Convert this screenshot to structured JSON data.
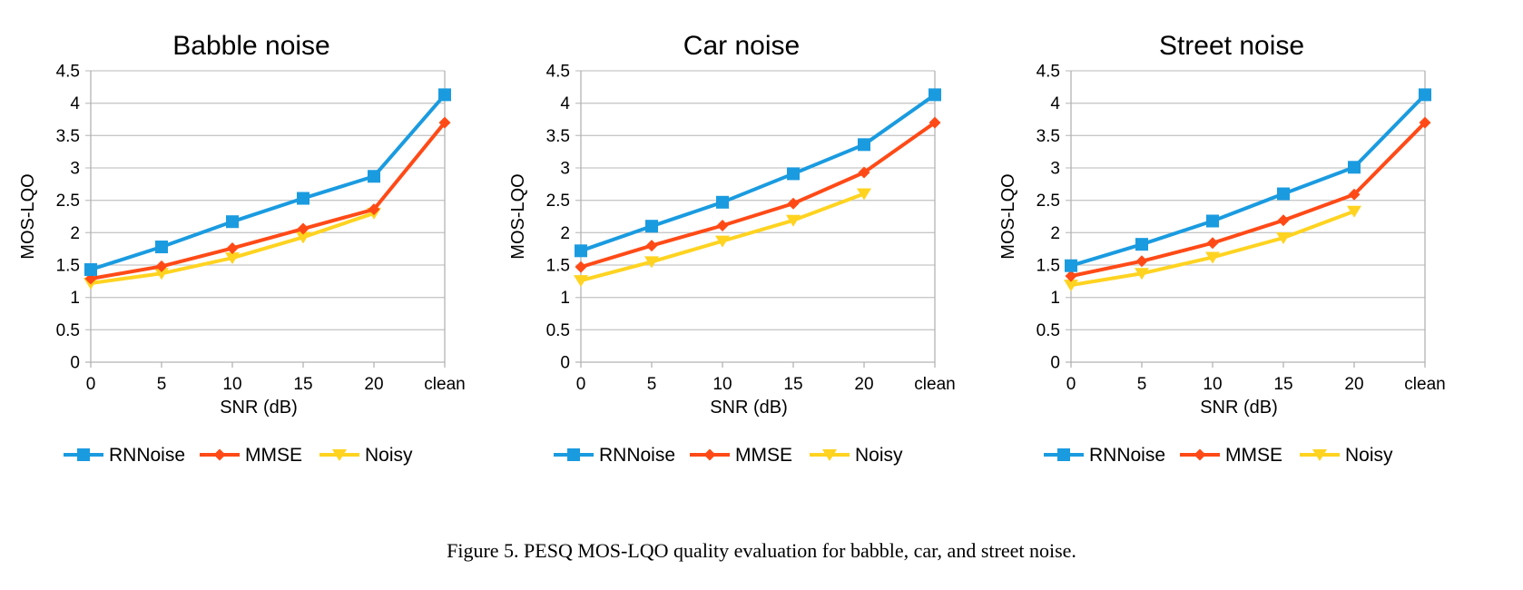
{
  "colors": {
    "RNNoise": "#1a9be0",
    "MMSE": "#ff4a17",
    "Noisy": "#ffd320",
    "grid": "#c8c8c8",
    "axis": "#b3b3b3"
  },
  "chart_data": [
    {
      "type": "line",
      "title": "Babble noise",
      "xlabel": "SNR (dB)",
      "ylabel": "MOS-LQO",
      "categories": [
        "0",
        "5",
        "10",
        "15",
        "20",
        "clean"
      ],
      "yticks": [
        "0",
        "0.5",
        "1",
        "1.5",
        "2",
        "2.5",
        "3",
        "3.5",
        "4",
        "4.5"
      ],
      "ylim": [
        0,
        4.5
      ],
      "grid": true,
      "legend_position": "bottom",
      "series": [
        {
          "name": "RNNoise",
          "marker": "square",
          "values": [
            1.43,
            1.78,
            2.17,
            2.53,
            2.87,
            4.13
          ]
        },
        {
          "name": "MMSE",
          "marker": "diamond",
          "values": [
            1.29,
            1.48,
            1.76,
            2.06,
            2.36,
            3.7
          ]
        },
        {
          "name": "Noisy",
          "marker": "triangle-down",
          "values": [
            1.22,
            1.37,
            1.61,
            1.93,
            2.3,
            null
          ]
        }
      ]
    },
    {
      "type": "line",
      "title": "Car noise",
      "xlabel": "SNR (dB)",
      "ylabel": "MOS-LQO",
      "categories": [
        "0",
        "5",
        "10",
        "15",
        "20",
        "clean"
      ],
      "yticks": [
        "0",
        "0.5",
        "1",
        "1.5",
        "2",
        "2.5",
        "3",
        "3.5",
        "4",
        "4.5"
      ],
      "ylim": [
        0,
        4.5
      ],
      "grid": true,
      "legend_position": "bottom",
      "series": [
        {
          "name": "RNNoise",
          "marker": "square",
          "values": [
            1.72,
            2.1,
            2.47,
            2.91,
            3.36,
            4.13
          ]
        },
        {
          "name": "MMSE",
          "marker": "diamond",
          "values": [
            1.47,
            1.8,
            2.11,
            2.45,
            2.93,
            3.7
          ]
        },
        {
          "name": "Noisy",
          "marker": "triangle-down",
          "values": [
            1.26,
            1.55,
            1.87,
            2.19,
            2.6,
            null
          ]
        }
      ]
    },
    {
      "type": "line",
      "title": "Street noise",
      "xlabel": "SNR (dB)",
      "ylabel": "MOS-LQO",
      "categories": [
        "0",
        "5",
        "10",
        "15",
        "20",
        "clean"
      ],
      "yticks": [
        "0",
        "0.5",
        "1",
        "1.5",
        "2",
        "2.5",
        "3",
        "3.5",
        "4",
        "4.5"
      ],
      "ylim": [
        0,
        4.5
      ],
      "grid": true,
      "legend_position": "bottom",
      "series": [
        {
          "name": "RNNoise",
          "marker": "square",
          "values": [
            1.49,
            1.82,
            2.18,
            2.6,
            3.01,
            4.13
          ]
        },
        {
          "name": "MMSE",
          "marker": "diamond",
          "values": [
            1.33,
            1.56,
            1.84,
            2.19,
            2.59,
            3.7
          ]
        },
        {
          "name": "Noisy",
          "marker": "triangle-down",
          "values": [
            1.19,
            1.37,
            1.62,
            1.92,
            2.33,
            null
          ]
        }
      ]
    }
  ],
  "caption": "Figure 5.  PESQ MOS-LQO quality evaluation for babble, car, and street noise."
}
